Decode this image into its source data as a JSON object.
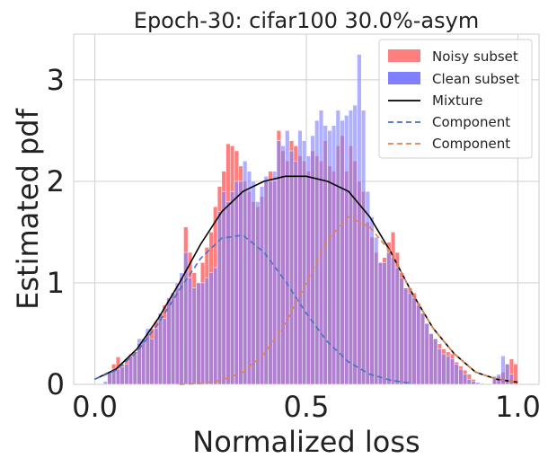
{
  "chart_data": {
    "type": "histogram",
    "title": "Epoch-30: cifar100 30.0%-asym",
    "xlabel": "Normalized loss",
    "ylabel": "Estimated pdf",
    "xlim": [
      -0.05,
      1.05
    ],
    "ylim": [
      0,
      3.45
    ],
    "x_ticks": [
      0.0,
      0.5,
      1.0
    ],
    "x_tick_labels": [
      "0.0",
      "0.5",
      "1.0"
    ],
    "y_ticks": [
      0,
      1,
      2,
      3
    ],
    "y_tick_labels": [
      "0",
      "1",
      "2",
      "3"
    ],
    "grid": true,
    "legend_position": "top-right",
    "bins": {
      "start": 0.0,
      "end": 1.0,
      "count": 100
    },
    "series": [
      {
        "name": "Noisy subset",
        "kind": "histogram",
        "color": "#ff7f7f",
        "values": [
          0.0,
          0.0,
          0.0,
          0.12,
          0.2,
          0.27,
          0.2,
          0.25,
          0.3,
          0.32,
          0.4,
          0.45,
          0.5,
          0.55,
          0.62,
          0.7,
          0.78,
          0.85,
          0.9,
          0.95,
          1.05,
          1.55,
          1.3,
          1.1,
          1.0,
          1.2,
          1.35,
          1.5,
          1.75,
          1.95,
          2.1,
          2.37,
          2.35,
          2.3,
          2.15,
          2.0,
          1.9,
          1.8,
          1.75,
          1.85,
          2.0,
          2.1,
          2.0,
          2.5,
          2.3,
          2.2,
          2.4,
          2.35,
          2.25,
          2.2,
          2.1,
          2.3,
          2.25,
          2.2,
          2.4,
          2.15,
          2.1,
          2.35,
          2.45,
          2.1,
          2.35,
          2.2,
          2.0,
          1.9,
          1.6,
          1.45,
          1.3,
          1.2,
          1.25,
          1.4,
          1.5,
          1.3,
          1.1,
          0.95,
          0.95,
          0.9,
          0.8,
          0.7,
          0.6,
          0.5,
          0.45,
          0.4,
          0.35,
          0.32,
          0.3,
          0.22,
          0.18,
          0.14,
          0.1,
          0.05,
          0.0,
          0.0,
          0.0,
          0.0,
          0.05,
          0.08,
          0.12,
          0.2,
          0.25,
          0.2
        ]
      },
      {
        "name": "Clean subset",
        "kind": "histogram",
        "color": "#7f7fff",
        "values": [
          0.0,
          0.0,
          0.03,
          0.12,
          0.15,
          0.15,
          0.17,
          0.2,
          0.28,
          0.3,
          0.45,
          0.45,
          0.55,
          0.45,
          0.55,
          0.7,
          0.65,
          0.85,
          0.9,
          1.0,
          1.1,
          1.3,
          1.05,
          0.95,
          1.0,
          1.0,
          1.05,
          1.1,
          1.15,
          1.7,
          1.9,
          1.8,
          1.9,
          2.0,
          2.0,
          2.2,
          2.1,
          2.0,
          1.8,
          1.95,
          2.05,
          2.0,
          2.1,
          2.4,
          2.35,
          2.5,
          2.3,
          2.2,
          2.5,
          2.4,
          2.25,
          2.45,
          2.6,
          2.7,
          2.55,
          2.5,
          2.55,
          2.7,
          2.6,
          2.65,
          2.7,
          2.75,
          3.25,
          2.7,
          1.9,
          1.65,
          1.45,
          1.2,
          1.2,
          1.3,
          1.25,
          1.15,
          1.05,
          0.95,
          0.9,
          0.85,
          0.78,
          0.7,
          0.6,
          0.5,
          0.45,
          0.35,
          0.3,
          0.28,
          0.25,
          0.2,
          0.15,
          0.1,
          0.05,
          0.03,
          0.02,
          0.01,
          0.0,
          0.0,
          0.08,
          0.1,
          0.28,
          0.2,
          0.1,
          0.0
        ]
      },
      {
        "name": "Mixture",
        "kind": "line",
        "color": "#000000",
        "dash": "solid",
        "x": [
          0.0,
          0.05,
          0.1,
          0.15,
          0.2,
          0.25,
          0.3,
          0.35,
          0.4,
          0.45,
          0.5,
          0.55,
          0.6,
          0.65,
          0.7,
          0.75,
          0.8,
          0.85,
          0.9,
          0.95,
          1.0
        ],
        "y": [
          0.05,
          0.15,
          0.35,
          0.65,
          1.0,
          1.38,
          1.7,
          1.9,
          2.0,
          2.05,
          2.05,
          2.0,
          1.9,
          1.65,
          1.3,
          0.9,
          0.55,
          0.3,
          0.12,
          0.05,
          0.02
        ]
      },
      {
        "name": "Component",
        "kind": "line",
        "color": "#4472c4",
        "dash": "dashed",
        "x": [
          0.0,
          0.05,
          0.1,
          0.15,
          0.2,
          0.25,
          0.3,
          0.35,
          0.4,
          0.45,
          0.5,
          0.55,
          0.6,
          0.65,
          0.7,
          0.75
        ],
        "y": [
          0.05,
          0.14,
          0.32,
          0.6,
          0.93,
          1.24,
          1.44,
          1.47,
          1.3,
          1.02,
          0.7,
          0.42,
          0.22,
          0.1,
          0.04,
          0.01
        ]
      },
      {
        "name": "Component",
        "kind": "line",
        "color": "#dd8452",
        "dash": "dashed",
        "x": [
          0.2,
          0.25,
          0.3,
          0.35,
          0.4,
          0.45,
          0.5,
          0.55,
          0.6,
          0.65,
          0.7,
          0.75,
          0.8,
          0.85,
          0.9,
          0.95,
          1.0
        ],
        "y": [
          0.0,
          0.01,
          0.04,
          0.12,
          0.3,
          0.6,
          1.0,
          1.42,
          1.65,
          1.55,
          1.3,
          0.9,
          0.55,
          0.3,
          0.12,
          0.05,
          0.02
        ]
      }
    ]
  }
}
